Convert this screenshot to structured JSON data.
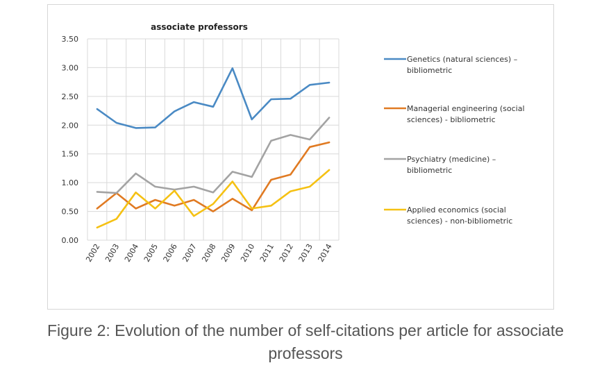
{
  "chart_data": {
    "type": "line",
    "title": "associate professors",
    "categories": [
      "2002",
      "2003",
      "2004",
      "2005",
      "2006",
      "2007",
      "2008",
      "2009",
      "2010",
      "2011",
      "2012",
      "2013",
      "2014"
    ],
    "y_ticks": [
      "0.00",
      "0.50",
      "1.00",
      "1.50",
      "2.00",
      "2.50",
      "3.00",
      "3.50"
    ],
    "ylim": [
      0,
      3.5
    ],
    "grid": true,
    "legend_position": "right",
    "series": [
      {
        "name": "Genetics (natural sciences) – bibliometric",
        "legend_lines": [
          "Genetics (natural sciences) –",
          "bibliometric"
        ],
        "color": "#4a8ac4",
        "values": [
          2.28,
          2.04,
          1.95,
          1.96,
          2.24,
          2.4,
          2.32,
          2.99,
          2.1,
          2.45,
          2.46,
          2.7,
          2.74
        ]
      },
      {
        "name": "Managerial engineering (social sciences) - bibliometric",
        "legend_lines": [
          "Managerial engineering (social",
          "sciences) - bibliometric"
        ],
        "color": "#e07a22",
        "values": [
          0.55,
          0.82,
          0.55,
          0.7,
          0.6,
          0.7,
          0.5,
          0.72,
          0.52,
          1.05,
          1.14,
          1.62,
          1.7
        ]
      },
      {
        "name": "Psychiatry (medicine) – bibliometric",
        "legend_lines": [
          "Psychiatry (medicine) –",
          "bibliometric"
        ],
        "color": "#a3a3a3",
        "values": [
          0.84,
          0.82,
          1.16,
          0.93,
          0.88,
          0.93,
          0.83,
          1.19,
          1.1,
          1.73,
          1.83,
          1.75,
          2.13
        ]
      },
      {
        "name": "Applied economics (social sciences) - non-bibliometric",
        "legend_lines": [
          "Applied economics (social",
          "sciences) - non-bibliometric"
        ],
        "color": "#f5c113",
        "values": [
          0.22,
          0.37,
          0.83,
          0.55,
          0.86,
          0.42,
          0.63,
          1.02,
          0.55,
          0.6,
          0.85,
          0.93,
          1.22
        ]
      }
    ]
  },
  "caption": {
    "line1": "Figure 2: Evolution of the number of self-citations per article for associate",
    "line2": "professors"
  }
}
